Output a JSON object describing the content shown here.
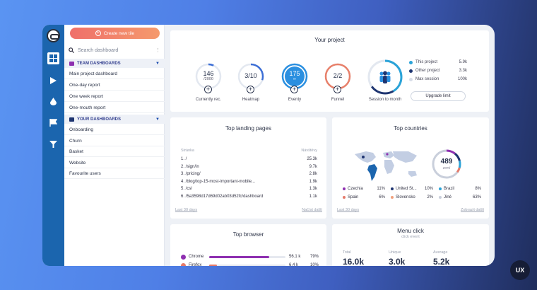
{
  "sidebar": {
    "create_label": "Create new tile",
    "search_placeholder": "Search dashboard",
    "team_heading": "TEAM DASHBOARDS",
    "team_items": [
      "Main project dashboard",
      "One-day report",
      "One week report",
      "One-mouth report"
    ],
    "your_heading": "YOUR DASHBOARDS",
    "your_items": [
      "Onboarding",
      "Churn",
      "Basket",
      "Website",
      "Favourite users"
    ]
  },
  "project": {
    "title": "Your project",
    "gauges": [
      {
        "value": "146",
        "sub": "/2000",
        "label": "Currently rec.",
        "fraction": 0.07,
        "color": "#3d6fd6"
      },
      {
        "value": "3/10",
        "sub": "",
        "label": "Heatmap",
        "fraction": 0.3,
        "color": "#3d6fd6"
      },
      {
        "value": "175",
        "sub": "∞",
        "label": "Eventy",
        "fraction": 1,
        "color": "#2a8fe0"
      },
      {
        "value": "2/2",
        "sub": "",
        "label": "Funnel",
        "fraction": 1,
        "color": "#e8806a"
      }
    ],
    "session_label": "Session to month",
    "legend": [
      {
        "label": "This project",
        "value": "5.9k",
        "color": "#2aa3d8"
      },
      {
        "label": "Other project",
        "value": "3.3k",
        "color": "#1e3470"
      },
      {
        "label": "Max session",
        "value": "100k",
        "color": "#d8dde8"
      }
    ],
    "upgrade_label": "Upgrade limit"
  },
  "landing": {
    "title": "Top landing pages",
    "col_page": "Stránka",
    "col_visits": "Návštěvy",
    "rows": [
      {
        "page": "1. /",
        "visits": "25.3k"
      },
      {
        "page": "2. /sign/in",
        "visits": "9.7k"
      },
      {
        "page": "3. /pricing/",
        "visits": "2.8k"
      },
      {
        "page": "4. /blog/top-15-most-important-mobile...",
        "visits": "1.9k"
      },
      {
        "page": "5. /cs/",
        "visits": "1.3k"
      },
      {
        "page": "6. /5a3598d17d69d02ab03d52fc/dashboard",
        "visits": "1.1k"
      }
    ],
    "footer_left": "Last 30 days",
    "footer_right": "Načíst další"
  },
  "countries": {
    "title": "Top countries",
    "total": "489",
    "total_label": "zemí",
    "items": [
      {
        "name": "Czechia",
        "pct": "11%",
        "color": "#8e2fb0"
      },
      {
        "name": "United St...",
        "pct": "10%",
        "color": "#1e3470"
      },
      {
        "name": "Brazil",
        "pct": "8%",
        "color": "#2aa3d8"
      },
      {
        "name": "Spain",
        "pct": "6%",
        "color": "#e57a6a"
      },
      {
        "name": "Slovensko",
        "pct": "2%",
        "color": "#f0a07c"
      },
      {
        "name": "Jiné",
        "pct": "63%",
        "color": "#c9cfdb"
      }
    ],
    "footer_left": "Last 30 days",
    "footer_right": "Zobrazit další"
  },
  "browser": {
    "title": "Top browser",
    "rows": [
      {
        "name": "Chrome",
        "count": "56.1 k",
        "pct": "79%",
        "fraction": 0.79,
        "color": "#8e2fb0"
      },
      {
        "name": "Firefox",
        "count": "6.4 k",
        "pct": "10%",
        "fraction": 0.1,
        "color": "#e57a6a"
      }
    ]
  },
  "menu": {
    "title": "Menu click",
    "subtitle": "click event",
    "stats": [
      {
        "label": "Total",
        "value": "16.0k"
      },
      {
        "label": "Unique",
        "value": "3.0k"
      },
      {
        "label": "Average",
        "value": "5.2k"
      }
    ]
  },
  "badge": "UX"
}
